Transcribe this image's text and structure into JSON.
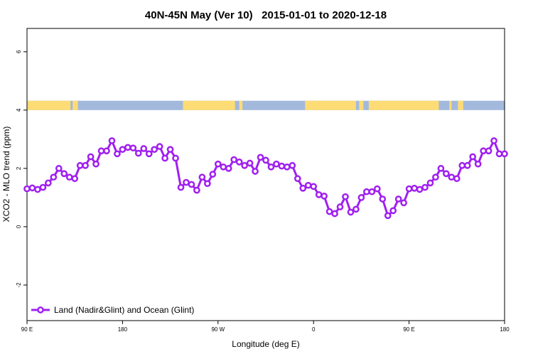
{
  "chart_data": {
    "type": "line",
    "title": "40N-45N May (Ver 10)   2015-01-01 to 2020-12-18",
    "x_label": "Longitude (deg E)",
    "y_label": "XCO2 - MLO trend (ppm)",
    "xlim": [
      90,
      540
    ],
    "ylim": [
      -3.22,
      6.8
    ],
    "xticks": [
      {
        "value": 90,
        "label": "90 E"
      },
      180,
      {
        "value": 270,
        "label": "90 W"
      },
      {
        "value": 360,
        "label": "0"
      },
      {
        "value": 450,
        "label": "90 E"
      },
      {
        "value": 540,
        "label": "180"
      }
    ],
    "yticks": [
      -2,
      0,
      2,
      4,
      6
    ],
    "legend": "bottom-left",
    "surface_strip": {
      "ylim": [
        4.0,
        4.32
      ],
      "ocean_color": "#a3b9dc",
      "land_color": "#fddc76",
      "land": [
        [
          90,
          131
        ],
        [
          133,
          138
        ],
        [
          237,
          286
        ],
        [
          290,
          293
        ],
        [
          352,
          400
        ],
        [
          403,
          407
        ],
        [
          412,
          478
        ],
        [
          488,
          490
        ],
        [
          496,
          501
        ]
      ]
    },
    "x": [
      90,
      95,
      100,
      105,
      110,
      115,
      120,
      125,
      130,
      135,
      140,
      145,
      150,
      155,
      160,
      165,
      170,
      175,
      180,
      185,
      190,
      195,
      200,
      205,
      210,
      215,
      220,
      225,
      230,
      235,
      240,
      245,
      250,
      255,
      260,
      265,
      270,
      275,
      280,
      285,
      290,
      295,
      300,
      305,
      310,
      315,
      320,
      325,
      330,
      335,
      340,
      345,
      350,
      355,
      360,
      365,
      370,
      375,
      380,
      385,
      390,
      395,
      400,
      405,
      410,
      415,
      420,
      425,
      430,
      435,
      440,
      445,
      450,
      455,
      460,
      465,
      470,
      475,
      480,
      485,
      490,
      495,
      500,
      505,
      510,
      515,
      520,
      525,
      530,
      535,
      540
    ],
    "series": [
      {
        "name": "Land (Nadir&Glint) and Ocean (Glint)",
        "color": "#a020f0",
        "values": [
          1.3,
          1.33,
          1.28,
          1.35,
          1.5,
          1.7,
          2.0,
          1.82,
          1.7,
          1.65,
          2.1,
          2.1,
          2.4,
          2.15,
          2.6,
          2.6,
          2.95,
          2.5,
          2.65,
          2.72,
          2.7,
          2.52,
          2.68,
          2.5,
          2.65,
          2.75,
          2.35,
          2.65,
          2.35,
          1.35,
          1.52,
          1.45,
          1.25,
          1.7,
          1.48,
          1.8,
          2.15,
          2.05,
          2.0,
          2.3,
          2.22,
          2.1,
          2.18,
          1.9,
          2.38,
          2.28,
          2.05,
          2.15,
          2.08,
          2.05,
          2.1,
          1.65,
          1.32,
          1.42,
          1.38,
          1.1,
          1.05,
          0.52,
          0.45,
          0.68,
          1.03,
          0.5,
          0.6,
          1.0,
          1.2,
          1.2,
          1.3,
          0.95,
          0.38,
          0.55,
          0.95,
          0.82,
          1.3,
          1.32,
          1.28,
          1.35,
          1.5,
          1.7,
          2.0,
          1.82,
          1.7,
          1.65,
          2.1,
          2.1,
          2.4,
          2.15,
          2.6,
          2.6,
          2.95,
          2.5,
          2.5
        ]
      }
    ]
  }
}
